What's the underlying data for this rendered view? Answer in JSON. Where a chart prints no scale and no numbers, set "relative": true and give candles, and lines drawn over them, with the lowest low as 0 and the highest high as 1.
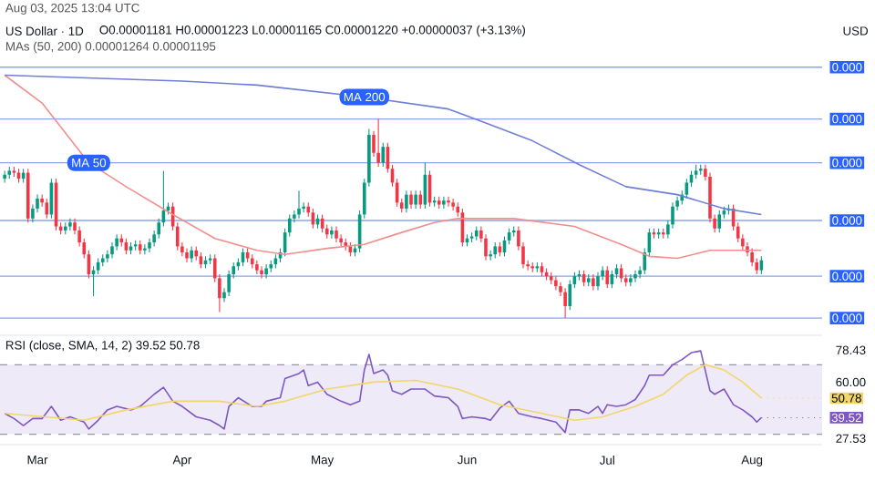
{
  "chart_data": [
    {
      "type": "candlestick",
      "title": "US Dollar · 1D",
      "subtitle": "O0.00001181 H0.00001223 L0.00001165 C0.00001220 +0.00000037 (+3.13%)",
      "annotations": [
        "Aug 03, 2025 13:04 UTC",
        "MAs (50, 200) 0.00001264 0.00001195",
        "0.000",
        "0.000",
        "0.000",
        "0.000",
        "0.000",
        "0.000"
      ],
      "ylabel": "USD",
      "relative": true,
      "tick_labels": false,
      "xlim": [
        "2025-02-21",
        "2025-08-16"
      ],
      "x": [
        "2025-02-22",
        "2025-02-23",
        "2025-02-24",
        "2025-02-25",
        "2025-02-26",
        "2025-02-27",
        "2025-02-28",
        "2025-03-01",
        "2025-03-02",
        "2025-03-03",
        "2025-03-04",
        "2025-03-05",
        "2025-03-06",
        "2025-03-07",
        "2025-03-08",
        "2025-03-09",
        "2025-03-10",
        "2025-03-11",
        "2025-03-12",
        "2025-03-13",
        "2025-03-14",
        "2025-03-15",
        "2025-03-16",
        "2025-03-17",
        "2025-03-18",
        "2025-03-19",
        "2025-03-20",
        "2025-03-21",
        "2025-03-22",
        "2025-03-23",
        "2025-03-24",
        "2025-03-25",
        "2025-03-26",
        "2025-03-27",
        "2025-03-28",
        "2025-03-29",
        "2025-03-30",
        "2025-03-31",
        "2025-04-01",
        "2025-04-02",
        "2025-04-03",
        "2025-04-04",
        "2025-04-05",
        "2025-04-06",
        "2025-04-07",
        "2025-04-08",
        "2025-04-09",
        "2025-04-10",
        "2025-04-11",
        "2025-04-12",
        "2025-04-13",
        "2025-04-14",
        "2025-04-15",
        "2025-04-16",
        "2025-04-17",
        "2025-04-18",
        "2025-04-19",
        "2025-04-20",
        "2025-04-21",
        "2025-04-22",
        "2025-04-23",
        "2025-04-24",
        "2025-04-25",
        "2025-04-26",
        "2025-04-27",
        "2025-04-28",
        "2025-04-29",
        "2025-04-30",
        "2025-05-01",
        "2025-05-02",
        "2025-05-03",
        "2025-05-04",
        "2025-05-05",
        "2025-05-06",
        "2025-05-07",
        "2025-05-08",
        "2025-05-09",
        "2025-05-10",
        "2025-05-11",
        "2025-05-12",
        "2025-05-13",
        "2025-05-14",
        "2025-05-15",
        "2025-05-16",
        "2025-05-17",
        "2025-05-18",
        "2025-05-19",
        "2025-05-20",
        "2025-05-21",
        "2025-05-22",
        "2025-05-23",
        "2025-05-24",
        "2025-05-25",
        "2025-05-26",
        "2025-05-27",
        "2025-05-28",
        "2025-05-29",
        "2025-05-30",
        "2025-05-31",
        "2025-06-01",
        "2025-06-02",
        "2025-06-03",
        "2025-06-04",
        "2025-06-05",
        "2025-06-06",
        "2025-06-07",
        "2025-06-08",
        "2025-06-09",
        "2025-06-10",
        "2025-06-11",
        "2025-06-12",
        "2025-06-13",
        "2025-06-14",
        "2025-06-15",
        "2025-06-16",
        "2025-06-17",
        "2025-06-18",
        "2025-06-19",
        "2025-06-20",
        "2025-06-21",
        "2025-06-22",
        "2025-06-23",
        "2025-06-24",
        "2025-06-25",
        "2025-06-26",
        "2025-06-27",
        "2025-06-28",
        "2025-06-29",
        "2025-06-30",
        "2025-07-01",
        "2025-07-02",
        "2025-07-03",
        "2025-07-04",
        "2025-07-05",
        "2025-07-06",
        "2025-07-07",
        "2025-07-08",
        "2025-07-09",
        "2025-07-10",
        "2025-07-11",
        "2025-07-12",
        "2025-07-13",
        "2025-07-14",
        "2025-07-15",
        "2025-07-16",
        "2025-07-17",
        "2025-07-18",
        "2025-07-19",
        "2025-07-20",
        "2025-07-21",
        "2025-07-22",
        "2025-07-23",
        "2025-07-24",
        "2025-07-25",
        "2025-07-26",
        "2025-07-27",
        "2025-07-28",
        "2025-07-29",
        "2025-07-30",
        "2025-07-31",
        "2025-08-01",
        "2025-08-02",
        "2025-08-03"
      ],
      "ohlc": [
        [
          0.7,
          0.74,
          0.68,
          0.72
        ],
        [
          0.72,
          0.76,
          0.7,
          0.74
        ],
        [
          0.74,
          0.76,
          0.71,
          0.73
        ],
        [
          0.73,
          0.75,
          0.68,
          0.7
        ],
        [
          0.7,
          0.75,
          0.68,
          0.73
        ],
        [
          0.73,
          0.75,
          0.48,
          0.5
        ],
        [
          0.5,
          0.57,
          0.48,
          0.55
        ],
        [
          0.55,
          0.62,
          0.53,
          0.6
        ],
        [
          0.6,
          0.62,
          0.56,
          0.58
        ],
        [
          0.58,
          0.6,
          0.5,
          0.52
        ],
        [
          0.52,
          0.7,
          0.5,
          0.68
        ],
        [
          0.68,
          0.7,
          0.44,
          0.46
        ],
        [
          0.46,
          0.48,
          0.42,
          0.44
        ],
        [
          0.44,
          0.48,
          0.42,
          0.46
        ],
        [
          0.46,
          0.5,
          0.44,
          0.48
        ],
        [
          0.48,
          0.5,
          0.42,
          0.44
        ],
        [
          0.44,
          0.46,
          0.36,
          0.38
        ],
        [
          0.38,
          0.4,
          0.3,
          0.32
        ],
        [
          0.32,
          0.34,
          0.2,
          0.22
        ],
        [
          0.22,
          0.26,
          0.11,
          0.24
        ],
        [
          0.24,
          0.3,
          0.22,
          0.28
        ],
        [
          0.28,
          0.32,
          0.26,
          0.3
        ],
        [
          0.3,
          0.34,
          0.28,
          0.32
        ],
        [
          0.32,
          0.38,
          0.3,
          0.36
        ],
        [
          0.36,
          0.42,
          0.34,
          0.4
        ],
        [
          0.4,
          0.42,
          0.36,
          0.38
        ],
        [
          0.38,
          0.4,
          0.32,
          0.34
        ],
        [
          0.34,
          0.38,
          0.32,
          0.36
        ],
        [
          0.36,
          0.39,
          0.34,
          0.37
        ],
        [
          0.37,
          0.39,
          0.32,
          0.34
        ],
        [
          0.34,
          0.37,
          0.32,
          0.35
        ],
        [
          0.35,
          0.4,
          0.33,
          0.38
        ],
        [
          0.38,
          0.44,
          0.36,
          0.42
        ],
        [
          0.42,
          0.5,
          0.4,
          0.48
        ],
        [
          0.48,
          0.74,
          0.46,
          0.54
        ],
        [
          0.54,
          0.58,
          0.52,
          0.56
        ],
        [
          0.56,
          0.58,
          0.44,
          0.46
        ],
        [
          0.46,
          0.48,
          0.34,
          0.36
        ],
        [
          0.36,
          0.38,
          0.31,
          0.33
        ],
        [
          0.33,
          0.35,
          0.28,
          0.3
        ],
        [
          0.3,
          0.36,
          0.28,
          0.34
        ],
        [
          0.34,
          0.36,
          0.29,
          0.31
        ],
        [
          0.31,
          0.33,
          0.25,
          0.27
        ],
        [
          0.27,
          0.31,
          0.25,
          0.29
        ],
        [
          0.29,
          0.32,
          0.27,
          0.3
        ],
        [
          0.3,
          0.32,
          0.18,
          0.2
        ],
        [
          0.2,
          0.22,
          0.03,
          0.1
        ],
        [
          0.1,
          0.15,
          0.08,
          0.13
        ],
        [
          0.13,
          0.24,
          0.11,
          0.22
        ],
        [
          0.22,
          0.28,
          0.2,
          0.26
        ],
        [
          0.26,
          0.3,
          0.24,
          0.28
        ],
        [
          0.28,
          0.35,
          0.26,
          0.33
        ],
        [
          0.33,
          0.35,
          0.28,
          0.3
        ],
        [
          0.3,
          0.32,
          0.25,
          0.27
        ],
        [
          0.27,
          0.29,
          0.22,
          0.24
        ],
        [
          0.24,
          0.26,
          0.2,
          0.22
        ],
        [
          0.22,
          0.27,
          0.2,
          0.25
        ],
        [
          0.25,
          0.29,
          0.23,
          0.27
        ],
        [
          0.27,
          0.32,
          0.25,
          0.3
        ],
        [
          0.3,
          0.35,
          0.28,
          0.33
        ],
        [
          0.33,
          0.45,
          0.31,
          0.43
        ],
        [
          0.43,
          0.52,
          0.41,
          0.5
        ],
        [
          0.5,
          0.54,
          0.48,
          0.52
        ],
        [
          0.52,
          0.64,
          0.5,
          0.55
        ],
        [
          0.55,
          0.58,
          0.53,
          0.56
        ],
        [
          0.56,
          0.58,
          0.51,
          0.53
        ],
        [
          0.53,
          0.55,
          0.45,
          0.47
        ],
        [
          0.47,
          0.52,
          0.45,
          0.5
        ],
        [
          0.5,
          0.52,
          0.43,
          0.45
        ],
        [
          0.45,
          0.47,
          0.4,
          0.42
        ],
        [
          0.42,
          0.46,
          0.4,
          0.44
        ],
        [
          0.44,
          0.46,
          0.38,
          0.4
        ],
        [
          0.4,
          0.42,
          0.36,
          0.38
        ],
        [
          0.38,
          0.4,
          0.34,
          0.36
        ],
        [
          0.36,
          0.38,
          0.31,
          0.33
        ],
        [
          0.33,
          0.37,
          0.31,
          0.35
        ],
        [
          0.35,
          0.54,
          0.33,
          0.52
        ],
        [
          0.52,
          0.7,
          0.5,
          0.68
        ],
        [
          0.68,
          0.95,
          0.66,
          0.92
        ],
        [
          0.92,
          0.94,
          0.81,
          0.83
        ],
        [
          0.83,
          1.0,
          0.76,
          0.78
        ],
        [
          0.78,
          0.88,
          0.76,
          0.86
        ],
        [
          0.86,
          0.88,
          0.73,
          0.75
        ],
        [
          0.75,
          0.77,
          0.66,
          0.68
        ],
        [
          0.68,
          0.7,
          0.56,
          0.58
        ],
        [
          0.58,
          0.6,
          0.53,
          0.55
        ],
        [
          0.55,
          0.64,
          0.53,
          0.62
        ],
        [
          0.62,
          0.64,
          0.55,
          0.57
        ],
        [
          0.57,
          0.64,
          0.55,
          0.62
        ],
        [
          0.62,
          0.64,
          0.55,
          0.57
        ],
        [
          0.57,
          0.78,
          0.55,
          0.72
        ],
        [
          0.72,
          0.74,
          0.56,
          0.58
        ],
        [
          0.58,
          0.61,
          0.56,
          0.59
        ],
        [
          0.59,
          0.61,
          0.55,
          0.57
        ],
        [
          0.57,
          0.61,
          0.55,
          0.59
        ],
        [
          0.59,
          0.61,
          0.56,
          0.58
        ],
        [
          0.58,
          0.6,
          0.54,
          0.56
        ],
        [
          0.56,
          0.58,
          0.51,
          0.53
        ],
        [
          0.53,
          0.55,
          0.36,
          0.38
        ],
        [
          0.38,
          0.42,
          0.36,
          0.4
        ],
        [
          0.4,
          0.43,
          0.38,
          0.41
        ],
        [
          0.41,
          0.46,
          0.39,
          0.44
        ],
        [
          0.44,
          0.46,
          0.38,
          0.4
        ],
        [
          0.4,
          0.42,
          0.29,
          0.31
        ],
        [
          0.31,
          0.34,
          0.29,
          0.32
        ],
        [
          0.32,
          0.38,
          0.3,
          0.36
        ],
        [
          0.36,
          0.38,
          0.31,
          0.33
        ],
        [
          0.33,
          0.41,
          0.31,
          0.39
        ],
        [
          0.39,
          0.45,
          0.37,
          0.43
        ],
        [
          0.43,
          0.46,
          0.41,
          0.44
        ],
        [
          0.44,
          0.46,
          0.34,
          0.36
        ],
        [
          0.36,
          0.38,
          0.25,
          0.27
        ],
        [
          0.27,
          0.29,
          0.24,
          0.26
        ],
        [
          0.26,
          0.28,
          0.23,
          0.25
        ],
        [
          0.25,
          0.28,
          0.23,
          0.26
        ],
        [
          0.26,
          0.28,
          0.21,
          0.23
        ],
        [
          0.23,
          0.25,
          0.19,
          0.21
        ],
        [
          0.21,
          0.23,
          0.17,
          0.19
        ],
        [
          0.19,
          0.21,
          0.14,
          0.16
        ],
        [
          0.16,
          0.18,
          0.11,
          0.13
        ],
        [
          0.13,
          0.15,
          0.0,
          0.06
        ],
        [
          0.06,
          0.19,
          0.04,
          0.17
        ],
        [
          0.17,
          0.23,
          0.15,
          0.21
        ],
        [
          0.21,
          0.24,
          0.19,
          0.22
        ],
        [
          0.22,
          0.24,
          0.16,
          0.18
        ],
        [
          0.18,
          0.22,
          0.16,
          0.2
        ],
        [
          0.2,
          0.22,
          0.14,
          0.16
        ],
        [
          0.16,
          0.23,
          0.14,
          0.21
        ],
        [
          0.21,
          0.26,
          0.19,
          0.24
        ],
        [
          0.24,
          0.26,
          0.15,
          0.17
        ],
        [
          0.17,
          0.24,
          0.15,
          0.22
        ],
        [
          0.22,
          0.27,
          0.2,
          0.25
        ],
        [
          0.25,
          0.27,
          0.18,
          0.2
        ],
        [
          0.2,
          0.22,
          0.16,
          0.18
        ],
        [
          0.18,
          0.22,
          0.16,
          0.2
        ],
        [
          0.2,
          0.24,
          0.18,
          0.22
        ],
        [
          0.22,
          0.26,
          0.2,
          0.24
        ],
        [
          0.24,
          0.35,
          0.22,
          0.33
        ],
        [
          0.33,
          0.45,
          0.31,
          0.43
        ],
        [
          0.43,
          0.45,
          0.4,
          0.42
        ],
        [
          0.42,
          0.45,
          0.4,
          0.43
        ],
        [
          0.43,
          0.45,
          0.4,
          0.42
        ],
        [
          0.42,
          0.49,
          0.4,
          0.47
        ],
        [
          0.47,
          0.58,
          0.45,
          0.56
        ],
        [
          0.56,
          0.61,
          0.54,
          0.59
        ],
        [
          0.59,
          0.64,
          0.57,
          0.62
        ],
        [
          0.62,
          0.7,
          0.6,
          0.68
        ],
        [
          0.68,
          0.74,
          0.66,
          0.72
        ],
        [
          0.72,
          0.77,
          0.7,
          0.74
        ],
        [
          0.74,
          0.77,
          0.72,
          0.75
        ],
        [
          0.75,
          0.77,
          0.69,
          0.71
        ],
        [
          0.71,
          0.73,
          0.48,
          0.5
        ],
        [
          0.5,
          0.52,
          0.43,
          0.45
        ],
        [
          0.45,
          0.54,
          0.43,
          0.52
        ],
        [
          0.52,
          0.56,
          0.5,
          0.54
        ],
        [
          0.54,
          0.57,
          0.52,
          0.55
        ],
        [
          0.55,
          0.57,
          0.44,
          0.46
        ],
        [
          0.46,
          0.48,
          0.38,
          0.4
        ],
        [
          0.4,
          0.42,
          0.34,
          0.36
        ],
        [
          0.36,
          0.38,
          0.31,
          0.33
        ],
        [
          0.33,
          0.35,
          0.26,
          0.28
        ],
        [
          0.28,
          0.3,
          0.22,
          0.24
        ],
        [
          0.24,
          0.31,
          0.22,
          0.29
        ]
      ],
      "series": [
        {
          "type": "line",
          "name": "MA 50",
          "color": "#f28e8e",
          "x": [
            "2025-02-22",
            "2025-03-02",
            "2025-03-12",
            "2025-03-20",
            "2025-03-30",
            "2025-04-08",
            "2025-04-17",
            "2025-04-23",
            "2025-05-02",
            "2025-05-10",
            "2025-05-18",
            "2025-05-25",
            "2025-05-30",
            "2025-06-11",
            "2025-06-24",
            "2025-07-04",
            "2025-07-10",
            "2025-07-16",
            "2025-07-23",
            "2025-08-03"
          ],
          "values": [
            1.22,
            1.08,
            0.78,
            0.66,
            0.52,
            0.4,
            0.34,
            0.32,
            0.35,
            0.37,
            0.43,
            0.48,
            0.5,
            0.5,
            0.46,
            0.37,
            0.31,
            0.3,
            0.34,
            0.34
          ]
        },
        {
          "type": "line",
          "name": "MA 200",
          "color": "#6f7fd6",
          "x": [
            "2025-02-22",
            "2025-04-01",
            "2025-04-17",
            "2025-05-10",
            "2025-05-28",
            "2025-06-05",
            "2025-06-15",
            "2025-06-25",
            "2025-07-05",
            "2025-07-16",
            "2025-07-26",
            "2025-08-03"
          ],
          "values": [
            1.22,
            1.19,
            1.17,
            1.11,
            1.05,
            0.98,
            0.89,
            0.77,
            0.66,
            0.62,
            0.55,
            0.52
          ]
        }
      ],
      "ref_lines": [
        {
          "axis": "y",
          "value": 1.26,
          "color": "#8aa4ee"
        },
        {
          "axis": "y",
          "value": 1.0,
          "color": "#8aa4ee"
        },
        {
          "axis": "y",
          "value": 0.78,
          "color": "#8aa4ee"
        },
        {
          "axis": "y",
          "value": 0.49,
          "color": "#8aa4ee"
        },
        {
          "axis": "y",
          "value": 0.21,
          "color": "#8aa4ee"
        },
        {
          "axis": "y",
          "value": 0.0,
          "color": "#8aa4ee"
        }
      ]
    },
    {
      "type": "line",
      "title": "RSI (close, SMA, 14, 2) 39.52 50.78",
      "xlim": [
        "2025-02-21",
        "2025-08-16"
      ],
      "xticks": [
        {
          "value": "2025-03-01",
          "label": "Mar"
        },
        {
          "value": "2025-04-01",
          "label": "Apr"
        },
        {
          "value": "2025-05-01",
          "label": "May"
        },
        {
          "value": "2025-06-01",
          "label": "Jun"
        },
        {
          "value": "2025-07-01",
          "label": "Jul"
        },
        {
          "value": "2025-08-01",
          "label": "Aug"
        }
      ],
      "ylim": [
        24,
        87
      ],
      "yticks": [
        {
          "value": 78.43,
          "label": "78.43"
        },
        {
          "value": 60,
          "label": "60.00"
        },
        {
          "value": 27.53,
          "label": "27.53"
        }
      ],
      "bands": [
        {
          "axis": "y",
          "from": 30,
          "to": 70,
          "color": "#efeaf8"
        }
      ],
      "ref_lines": [
        {
          "axis": "y",
          "value": 70,
          "color": "#9598a1",
          "line_style": "dashed"
        },
        {
          "axis": "y",
          "value": 30,
          "color": "#9598a1",
          "line_style": "dashed"
        }
      ],
      "annotations": [
        "39.52",
        "50.78"
      ],
      "series": [
        {
          "color": "#7e57c2",
          "x": [
            "2025-02-22",
            "2025-02-24",
            "2025-02-26",
            "2025-02-28",
            "2025-03-02",
            "2025-03-04",
            "2025-03-06",
            "2025-03-08",
            "2025-03-11",
            "2025-03-12",
            "2025-03-14",
            "2025-03-16",
            "2025-03-18",
            "2025-03-21",
            "2025-03-23",
            "2025-03-26",
            "2025-03-28",
            "2025-03-30",
            "2025-04-01",
            "2025-04-04",
            "2025-04-07",
            "2025-04-09",
            "2025-04-10",
            "2025-04-11",
            "2025-04-13",
            "2025-04-16",
            "2025-04-18",
            "2025-04-19",
            "2025-04-22",
            "2025-04-23",
            "2025-04-26",
            "2025-04-27",
            "2025-04-28",
            "2025-04-30",
            "2025-05-02",
            "2025-05-05",
            "2025-05-07",
            "2025-05-09",
            "2025-05-10",
            "2025-05-11",
            "2025-05-12",
            "2025-05-14",
            "2025-05-15",
            "2025-05-16",
            "2025-05-18",
            "2025-05-20",
            "2025-05-23",
            "2025-05-25",
            "2025-05-28",
            "2025-05-30",
            "2025-05-31",
            "2025-06-02",
            "2025-06-05",
            "2025-06-06",
            "2025-06-08",
            "2025-06-10",
            "2025-06-12",
            "2025-06-15",
            "2025-06-17",
            "2025-06-20",
            "2025-06-22",
            "2025-06-23",
            "2025-06-25",
            "2025-06-27",
            "2025-06-29",
            "2025-06-30",
            "2025-07-01",
            "2025-07-03",
            "2025-07-05",
            "2025-07-07",
            "2025-07-09",
            "2025-07-10",
            "2025-07-13",
            "2025-07-15",
            "2025-07-17",
            "2025-07-19",
            "2025-07-21",
            "2025-07-23",
            "2025-07-24",
            "2025-07-26",
            "2025-07-28",
            "2025-07-30",
            "2025-08-01",
            "2025-08-02",
            "2025-08-03"
          ],
          "values": [
            42,
            39,
            35,
            39,
            39,
            46,
            38,
            40,
            37,
            33,
            38,
            44,
            46,
            44,
            46,
            53,
            57,
            49,
            46,
            40,
            38,
            35,
            33,
            46,
            51,
            46,
            46,
            49,
            51,
            62,
            65,
            67,
            58,
            60,
            53,
            49,
            47,
            49,
            67,
            76,
            65,
            67,
            64,
            55,
            53,
            56,
            56,
            52,
            51,
            46,
            39,
            40,
            39,
            38,
            45,
            49,
            42,
            40,
            39,
            37,
            31,
            44,
            44,
            42,
            46,
            42,
            47,
            46,
            47,
            50,
            58,
            64,
            64,
            70,
            73,
            77,
            78,
            55,
            53,
            56,
            47,
            44,
            40,
            37,
            39.52
          ]
        },
        {
          "color": "#f2d66b",
          "x": [
            "2025-02-22",
            "2025-03-11",
            "2025-03-20",
            "2025-03-30",
            "2025-04-09",
            "2025-04-17",
            "2025-04-23",
            "2025-05-02",
            "2025-05-12",
            "2025-05-21",
            "2025-05-30",
            "2025-06-08",
            "2025-06-17",
            "2025-06-24",
            "2025-06-30",
            "2025-07-07",
            "2025-07-13",
            "2025-07-18",
            "2025-07-22",
            "2025-07-26",
            "2025-07-30",
            "2025-08-03"
          ],
          "values": [
            42,
            38,
            44,
            49,
            49,
            46,
            49,
            56,
            60,
            61,
            56,
            47,
            42,
            38,
            40,
            46,
            53,
            64,
            70,
            67,
            60,
            50.78
          ]
        }
      ]
    }
  ]
}
